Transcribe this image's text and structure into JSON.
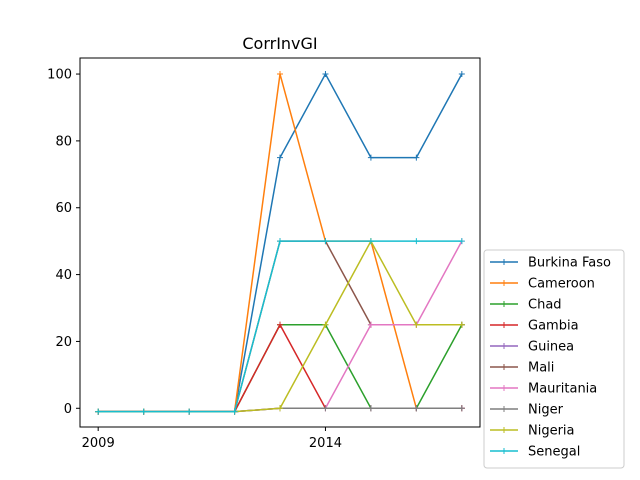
{
  "chart_data": {
    "type": "line",
    "title": "CorrInvGI",
    "xlabel": "",
    "ylabel": "",
    "x": [
      2009,
      2010,
      2011,
      2012,
      2013,
      2014,
      2015,
      2016,
      2017
    ],
    "xticks": [
      2009,
      2014
    ],
    "xlim": [
      2008.6,
      2017.4
    ],
    "ylim": [
      -5.6,
      104.8
    ],
    "yticks": [
      0,
      20,
      40,
      60,
      80,
      100
    ],
    "legend_position": "right, outside plot area",
    "series": [
      {
        "name": "Burkina Faso",
        "color": "#1f77b4",
        "values": [
          -1,
          -1,
          -1,
          -1,
          75,
          100,
          75,
          75,
          100
        ]
      },
      {
        "name": "Cameroon",
        "color": "#ff7f0e",
        "values": [
          -1,
          -1,
          -1,
          -1,
          100,
          50,
          50,
          0,
          0
        ]
      },
      {
        "name": "Chad",
        "color": "#2ca02c",
        "values": [
          -1,
          -1,
          -1,
          -1,
          25,
          25,
          0,
          0,
          25
        ]
      },
      {
        "name": "Gambia",
        "color": "#d62728",
        "values": [
          -1,
          -1,
          -1,
          -1,
          25,
          0,
          0,
          0,
          0
        ]
      },
      {
        "name": "Guinea",
        "color": "#9467bd",
        "values": [
          -1,
          -1,
          -1,
          -1,
          0,
          0,
          0,
          0,
          0
        ]
      },
      {
        "name": "Mali",
        "color": "#8c564b",
        "values": [
          -1,
          -1,
          -1,
          -1,
          50,
          50,
          25,
          25,
          25
        ]
      },
      {
        "name": "Mauritania",
        "color": "#e377c2",
        "values": [
          -1,
          -1,
          -1,
          -1,
          0,
          0,
          25,
          25,
          50
        ]
      },
      {
        "name": "Niger",
        "color": "#7f7f7f",
        "values": [
          -1,
          -1,
          -1,
          -1,
          0,
          0,
          0,
          0,
          0
        ]
      },
      {
        "name": "Nigeria",
        "color": "#bcbd22",
        "values": [
          -1,
          -1,
          -1,
          -1,
          0,
          25,
          50,
          25,
          25
        ]
      },
      {
        "name": "Senegal",
        "color": "#17becf",
        "values": [
          -1,
          -1,
          -1,
          -1,
          50,
          50,
          50,
          50,
          50
        ]
      }
    ]
  }
}
